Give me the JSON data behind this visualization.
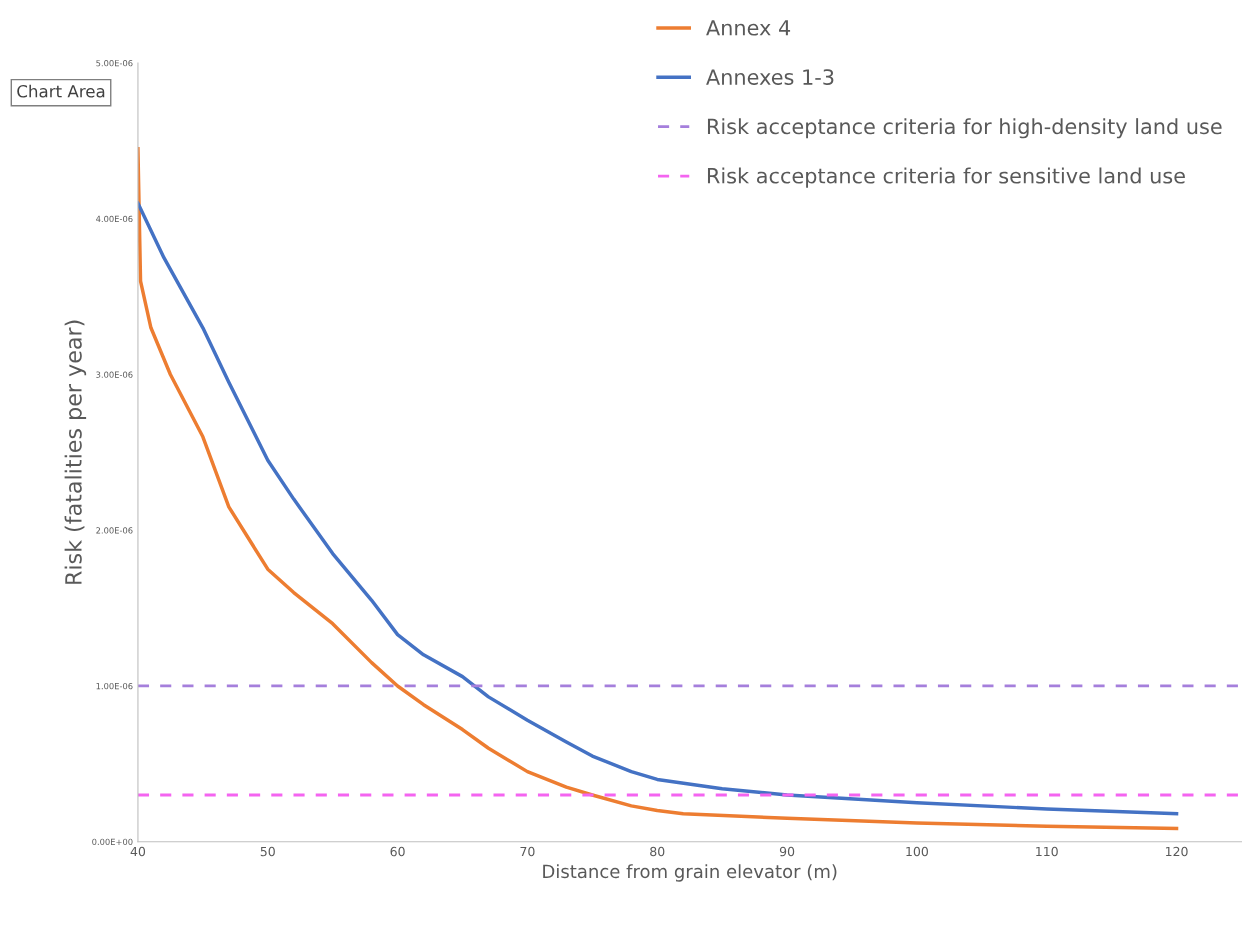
{
  "chart_data": {
    "type": "line",
    "xlabel": "Distance from grain elevator (m)",
    "ylabel": "Risk (fatalities per year)",
    "xlim": [
      40,
      125
    ],
    "xticks": [
      40,
      50,
      60,
      70,
      80,
      90,
      100,
      110,
      120
    ],
    "ylim": [
      0,
      5e-06
    ],
    "yticks": [
      {
        "value": 0,
        "label": "0.00E+00"
      },
      {
        "value": 1e-06,
        "label": "1.00E-06"
      },
      {
        "value": 2e-06,
        "label": "2.00E-06"
      },
      {
        "value": 3e-06,
        "label": "3.00E-06"
      },
      {
        "value": 4e-06,
        "label": "4.00E-06"
      },
      {
        "value": 5e-06,
        "label": "5.00E-06"
      }
    ],
    "series": [
      {
        "name": "Annex 4",
        "color": "#ed7d31",
        "x": [
          40,
          40.2,
          41,
          42.5,
          45,
          47,
          50,
          52,
          55,
          58,
          60,
          62,
          65,
          67,
          70,
          73,
          75,
          78,
          80,
          82,
          90,
          100,
          110,
          120
        ],
        "values": [
          4.45e-06,
          3.6e-06,
          3.3e-06,
          3e-06,
          2.6e-06,
          2.15e-06,
          1.75e-06,
          1.6e-06,
          1.4e-06,
          1.15e-06,
          1e-06,
          8.8e-07,
          7.2e-07,
          6e-07,
          4.5e-07,
          3.5e-07,
          3e-07,
          2.3e-07,
          2e-07,
          1.8e-07,
          1.5e-07,
          1.2e-07,
          1e-07,
          8.5e-08
        ]
      },
      {
        "name": "Annexes 1-3",
        "color": "#4472c4",
        "x": [
          40,
          42,
          45,
          47,
          50,
          52,
          55,
          58,
          60,
          62,
          65,
          67,
          70,
          73,
          75,
          78,
          80,
          85,
          90,
          100,
          110,
          120
        ],
        "values": [
          4.1e-06,
          3.75e-06,
          3.3e-06,
          2.95e-06,
          2.45e-06,
          2.2e-06,
          1.85e-06,
          1.55e-06,
          1.33e-06,
          1.2e-06,
          1.06e-06,
          9.3e-07,
          7.8e-07,
          6.4e-07,
          5.5e-07,
          4.5e-07,
          4e-07,
          3.4e-07,
          3e-07,
          2.5e-07,
          2.1e-07,
          1.8e-07
        ]
      }
    ],
    "ref_lines": [
      {
        "axis": "y",
        "value": 1e-06,
        "label": "Risk acceptance criteria for high-density land use",
        "color": "#a57fdc",
        "line_style": "dashed"
      },
      {
        "axis": "y",
        "value": 3e-07,
        "label": "Risk acceptance criteria for sensitive land use",
        "color": "#f464f0",
        "line_style": "dashed"
      }
    ],
    "annotations": [
      "Chart Area"
    ],
    "legend": "top right",
    "grid": false,
    "marker": "none",
    "line_style": "solid"
  }
}
